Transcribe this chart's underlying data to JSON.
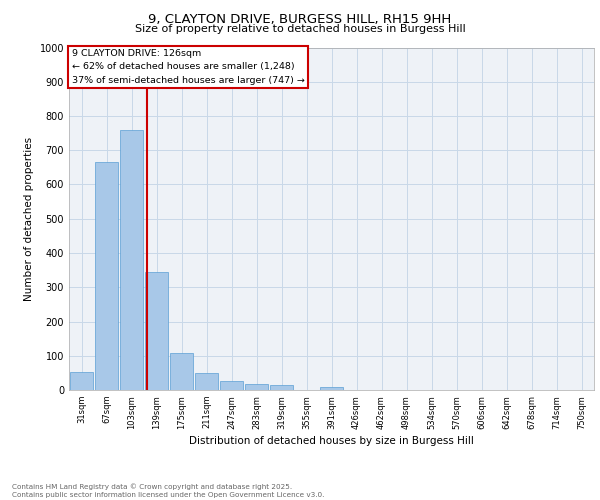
{
  "title_line1": "9, CLAYTON DRIVE, BURGESS HILL, RH15 9HH",
  "title_line2": "Size of property relative to detached houses in Burgess Hill",
  "bar_labels": [
    "31sqm",
    "67sqm",
    "103sqm",
    "139sqm",
    "175sqm",
    "211sqm",
    "247sqm",
    "283sqm",
    "319sqm",
    "355sqm",
    "391sqm",
    "426sqm",
    "462sqm",
    "498sqm",
    "534sqm",
    "570sqm",
    "606sqm",
    "642sqm",
    "678sqm",
    "714sqm",
    "750sqm"
  ],
  "bar_values": [
    52,
    665,
    758,
    345,
    108,
    50,
    27,
    18,
    14,
    0,
    8,
    0,
    0,
    0,
    0,
    0,
    0,
    0,
    0,
    0,
    0
  ],
  "bar_color": "#a8c8e8",
  "bar_edge_color": "#5a9fd4",
  "grid_color": "#c8d8e8",
  "background_color": "#eef2f7",
  "vline_x": 2.62,
  "vline_color": "#cc0000",
  "annotation_title": "9 CLAYTON DRIVE: 126sqm",
  "annotation_line1": "← 62% of detached houses are smaller (1,248)",
  "annotation_line2": "37% of semi-detached houses are larger (747) →",
  "annotation_box_color": "#cc0000",
  "ylabel": "Number of detached properties",
  "xlabel": "Distribution of detached houses by size in Burgess Hill",
  "ylim": [
    0,
    1000
  ],
  "yticks": [
    0,
    100,
    200,
    300,
    400,
    500,
    600,
    700,
    800,
    900,
    1000
  ],
  "footer_line1": "Contains HM Land Registry data © Crown copyright and database right 2025.",
  "footer_line2": "Contains public sector information licensed under the Open Government Licence v3.0."
}
